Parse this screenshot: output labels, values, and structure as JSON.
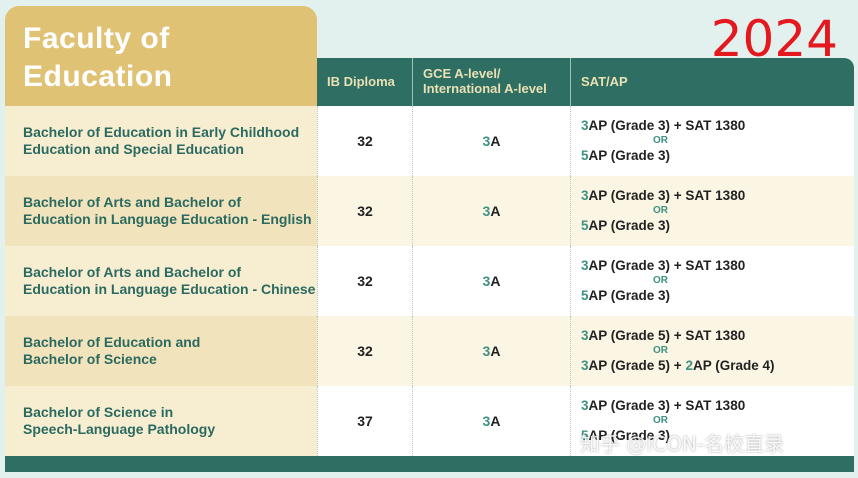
{
  "title_line1": "Faculty of",
  "title_line2": "Education",
  "year": "2024",
  "headers": {
    "ib": "IB Diploma",
    "gce_line1": "GCE A-level/",
    "gce_line2": "International A-level",
    "sat": "SAT/AP"
  },
  "rows": [
    {
      "name_line1": "Bachelor of Education in Early Childhood",
      "name_line2": "Education and Special Education",
      "ib": "32",
      "gce_num": "3",
      "gce_grade": "A",
      "sat_line1_num": "3",
      "sat_line1_text": "AP (Grade 3) + SAT 1380",
      "or": "OR",
      "sat_line2_num": "5",
      "sat_line2_text": "AP (Grade 3)",
      "sat_line2_extra_num": "",
      "sat_line2_extra": ""
    },
    {
      "name_line1": "Bachelor of Arts and Bachelor of",
      "name_line2": "Education in Language Education - English",
      "ib": "32",
      "gce_num": "3",
      "gce_grade": "A",
      "sat_line1_num": "3",
      "sat_line1_text": "AP (Grade 3) + SAT 1380",
      "or": "OR",
      "sat_line2_num": "5",
      "sat_line2_text": "AP (Grade 3)",
      "sat_line2_extra_num": "",
      "sat_line2_extra": ""
    },
    {
      "name_line1": "Bachelor of Arts and Bachelor of",
      "name_line2": "Education in Language Education - Chinese",
      "ib": "32",
      "gce_num": "3",
      "gce_grade": "A",
      "sat_line1_num": "3",
      "sat_line1_text": "AP (Grade 3) + SAT 1380",
      "or": "OR",
      "sat_line2_num": "5",
      "sat_line2_text": "AP (Grade 3)",
      "sat_line2_extra_num": "",
      "sat_line2_extra": ""
    },
    {
      "name_line1": "Bachelor of Education and",
      "name_line2": "Bachelor of Science",
      "ib": "32",
      "gce_num": "3",
      "gce_grade": "A",
      "sat_line1_num": "3",
      "sat_line1_text": "AP (Grade 5) + SAT 1380",
      "or": "OR",
      "sat_line2_num": "3",
      "sat_line2_text": "AP (Grade 5) + ",
      "sat_line2_extra_num": "2",
      "sat_line2_extra": "AP (Grade 4)"
    },
    {
      "name_line1": "Bachelor of Science in",
      "name_line2": "Speech-Language Pathology",
      "ib": "37",
      "gce_num": "3",
      "gce_grade": "A",
      "sat_line1_num": "3",
      "sat_line1_text": "AP (Grade 3) + SAT 1380",
      "or": "OR",
      "sat_line2_num": "5",
      "sat_line2_text": "AP (Grade 3)",
      "sat_line2_extra_num": "",
      "sat_line2_extra": ""
    }
  ],
  "watermark": "知乎 @ICON-名校直录"
}
